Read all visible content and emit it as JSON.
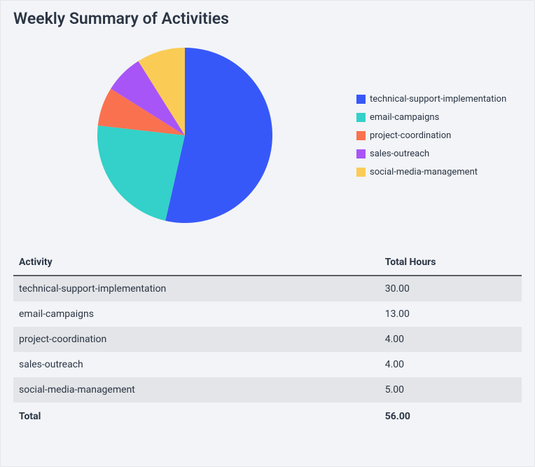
{
  "title": "Weekly Summary of Activities",
  "chart": {
    "type": "pie",
    "background_color": "#f2f4f7",
    "radius": 125,
    "start_angle_deg": -90,
    "slices": [
      {
        "label": "technical-support-implementation",
        "value": 30.0,
        "color": "#3758f9"
      },
      {
        "label": "email-campaigns",
        "value": 13.0,
        "color": "#33d1c9"
      },
      {
        "label": "project-coordination",
        "value": 4.0,
        "color": "#fa7150"
      },
      {
        "label": "sales-outreach",
        "value": 4.0,
        "color": "#a855f7"
      },
      {
        "label": "social-media-management",
        "value": 5.0,
        "color": "#facc56"
      }
    ],
    "legend": {
      "position": "right",
      "fontsize": 13,
      "swatch_size": 13,
      "text_color": "#2b3544"
    }
  },
  "table": {
    "columns": [
      "Activity",
      "Total Hours"
    ],
    "rows": [
      [
        "technical-support-implementation",
        "30.00"
      ],
      [
        "email-campaigns",
        "13.00"
      ],
      [
        "project-coordination",
        "4.00"
      ],
      [
        "sales-outreach",
        "4.00"
      ],
      [
        "social-media-management",
        "5.00"
      ]
    ],
    "footer": [
      "Total",
      "56.00"
    ],
    "header_border_color": "#5a5e64",
    "row_odd_bg": "#e3e5e8",
    "row_even_bg": "#f2f4f7",
    "fontsize": 14
  }
}
